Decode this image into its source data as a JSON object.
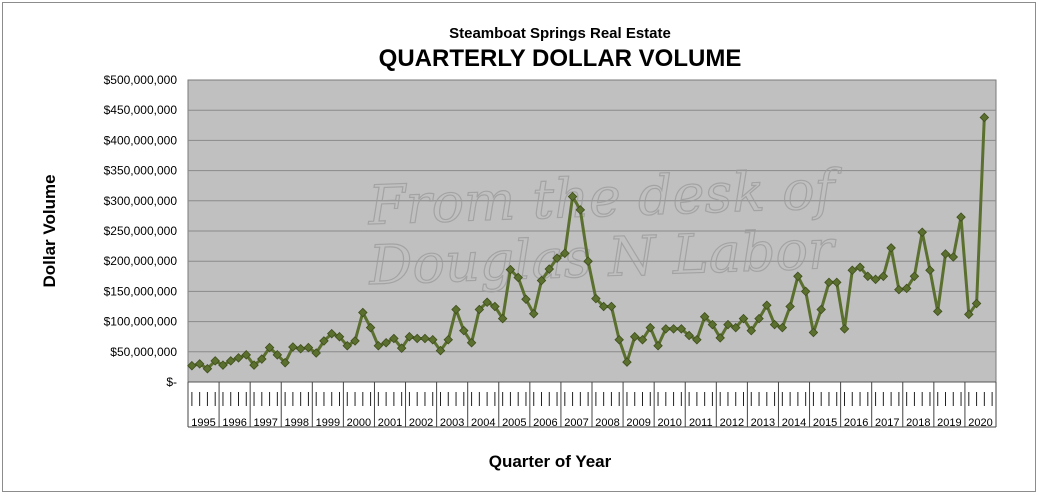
{
  "chart_data": {
    "type": "line",
    "subtitle": "Steamboat Springs Real Estate",
    "title": "QUARTERLY DOLLAR VOLUME",
    "ylabel": "Dollar Volume",
    "xlabel": "Quarter of Year",
    "ylim": [
      0,
      500000000
    ],
    "yticks": [
      "$-",
      "$50,000,000",
      "$100,000,000",
      "$150,000,000",
      "$200,000,000",
      "$250,000,000",
      "$300,000,000",
      "$350,000,000",
      "$400,000,000",
      "$450,000,000",
      "$500,000,000"
    ],
    "years": [
      "1995",
      "1996",
      "1997",
      "1998",
      "1999",
      "2000",
      "2001",
      "2002",
      "2003",
      "2004",
      "2005",
      "2006",
      "2007",
      "2008",
      "2009",
      "2010",
      "2011",
      "2012",
      "2013",
      "2014",
      "2015",
      "2016",
      "2017",
      "2018",
      "2019",
      "2020"
    ],
    "grid": true,
    "line_color": "#5b6f2f",
    "plot_background": "#c0c0c0",
    "watermark": [
      "From the desk of",
      "Douglas N Labor"
    ],
    "series": [
      {
        "values": [
          27000000,
          30000000,
          22000000,
          35000000,
          28000000,
          35000000,
          40000000,
          45000000,
          28000000,
          38000000,
          57000000,
          45000000,
          32000000,
          58000000,
          55000000,
          57000000,
          48000000,
          68000000,
          80000000,
          75000000,
          60000000,
          68000000,
          115000000,
          90000000,
          60000000,
          65000000,
          72000000,
          56000000,
          75000000,
          72000000,
          72000000,
          70000000,
          52000000,
          70000000,
          120000000,
          85000000,
          65000000,
          120000000,
          132000000,
          125000000,
          105000000,
          186000000,
          173000000,
          137000000,
          113000000,
          168000000,
          187000000,
          205000000,
          213000000,
          307000000,
          285000000,
          200000000,
          138000000,
          125000000,
          125000000,
          70000000,
          33000000,
          75000000,
          70000000,
          90000000,
          60000000,
          88000000,
          88000000,
          88000000,
          77000000,
          70000000,
          108000000,
          95000000,
          73000000,
          95000000,
          90000000,
          105000000,
          85000000,
          105000000,
          127000000,
          95000000,
          90000000,
          125000000,
          175000000,
          150000000,
          82000000,
          120000000,
          165000000,
          165000000,
          88000000,
          185000000,
          190000000,
          175000000,
          170000000,
          175000000,
          222000000,
          153000000,
          155000000,
          175000000,
          248000000,
          185000000,
          117000000,
          212000000,
          207000000,
          273000000,
          112000000,
          130000000,
          438000000
        ]
      }
    ]
  }
}
